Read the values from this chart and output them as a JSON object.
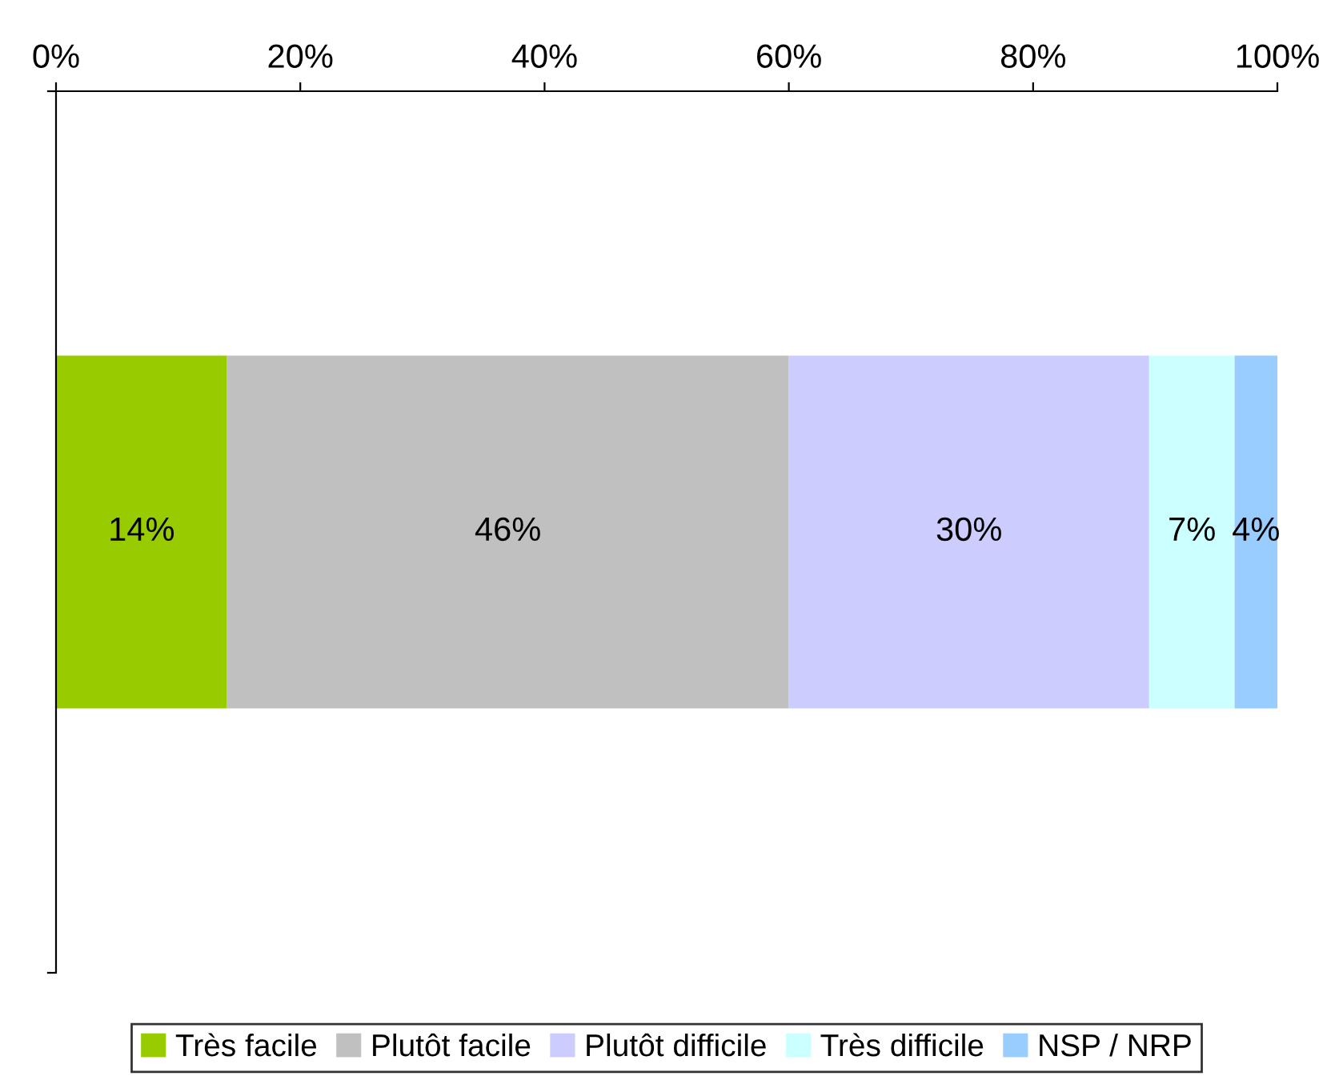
{
  "chart_data": {
    "type": "bar",
    "orientation": "horizontal",
    "stacked": true,
    "categories": [
      null
    ],
    "series": [
      {
        "name": "Très facile",
        "color": "#99cc00",
        "values": [
          14
        ],
        "value_labels": [
          "14%"
        ]
      },
      {
        "name": "Plutôt facile",
        "color": "#c0c0c0",
        "values": [
          46
        ],
        "value_labels": [
          "46%"
        ]
      },
      {
        "name": "Plutôt difficile",
        "color": "#ccccff",
        "values": [
          29.5
        ],
        "value_labels": [
          "30%"
        ]
      },
      {
        "name": "Très difficile",
        "color": "#ccffff",
        "values": [
          7
        ],
        "value_labels": [
          "7%"
        ]
      },
      {
        "name": "NSP / NRP",
        "color": "#99ccff",
        "values": [
          3.5
        ],
        "value_labels": [
          "4%"
        ]
      }
    ],
    "xlim": [
      0,
      100
    ],
    "xticks": [
      {
        "value": 0,
        "label": "0%"
      },
      {
        "value": 20,
        "label": "20%"
      },
      {
        "value": 40,
        "label": "40%"
      },
      {
        "value": 60,
        "label": "60%"
      },
      {
        "value": 80,
        "label": "80%"
      },
      {
        "value": 100,
        "label": "100%"
      }
    ],
    "grid": false,
    "legend": "bottom"
  }
}
